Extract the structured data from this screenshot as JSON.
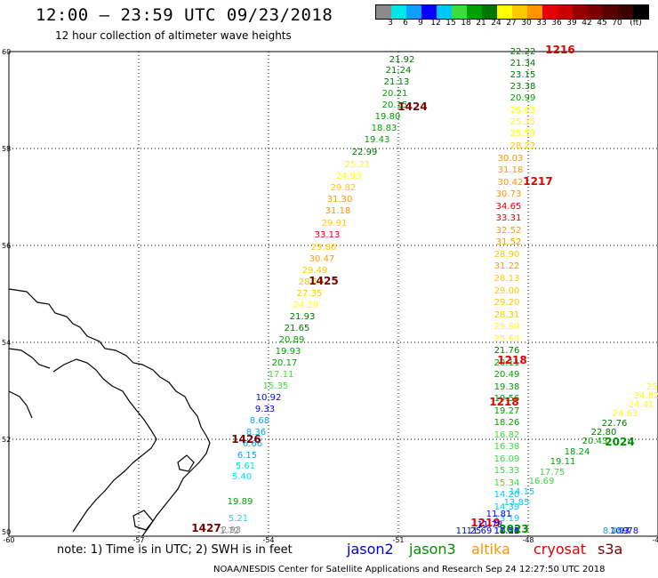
{
  "header": {
    "title": "12:00 – 23:59 UTC 09/23/2018",
    "subtitle": "12 hour collection of altimeter wave heights"
  },
  "legend": {
    "colors": [
      "#8c8c8c",
      "#00e6e6",
      "#0fa0ff",
      "#0000ff",
      "#00c8ff",
      "#3cdc3c",
      "#00a000",
      "#007800",
      "#ffff00",
      "#ffc800",
      "#ff9600",
      "#e60000",
      "#c80000",
      "#960000",
      "#7a0000",
      "#5a0000",
      "#3c0000",
      "#000000"
    ],
    "labels": [
      "3",
      "6",
      "9",
      "12",
      "15",
      "18",
      "21",
      "24",
      "27",
      "30",
      "33",
      "36",
      "39",
      "42",
      "45",
      "70",
      "(ft)"
    ]
  },
  "axes": {
    "lat_labels": [
      "60",
      "58",
      "56",
      "54",
      "52",
      "50"
    ],
    "lon_labels": [
      "-60",
      "-57",
      "-54",
      "-51",
      "-48",
      "-45"
    ]
  },
  "tracks": [
    {
      "id": "1216",
      "values": [
        "22.22",
        "21.34",
        "23.15",
        "23.38",
        "20.99",
        "25.03",
        "25.35",
        "25.59",
        "28.22",
        "30.03",
        "31.18",
        "30.42",
        "30.73",
        "34.65",
        "33.31",
        "32.52",
        "31.52",
        "28.90",
        "31.22",
        "28.13",
        "29.00",
        "29.20",
        "28.31",
        "25.89",
        "25.63",
        "21.76",
        "20.11",
        "20.49",
        "19.38",
        "19.56",
        "19.27",
        "18.26",
        "16.82",
        "16.38",
        "16.09",
        "15.33",
        "15.34",
        "14.20",
        "14.39",
        "13.19",
        "11.71",
        "11.50",
        "11.12",
        "11.11",
        "10.24"
      ],
      "labels": [
        {
          "text": "1216",
          "color": "#e00000"
        },
        {
          "text": "1217",
          "color": "#e00000"
        },
        {
          "text": "1218",
          "color": "#e00000"
        },
        {
          "text": "1218",
          "color": "#e00000"
        },
        {
          "text": "1219",
          "color": "#e00000"
        }
      ]
    },
    {
      "id": "1424",
      "values": [
        "21.92",
        "21.24",
        "21.13",
        "20.21",
        "20.15",
        "19.80",
        "18.83",
        "19.43",
        "22.99",
        "25.21",
        "24.93",
        "29.82",
        "31.30",
        "31.18",
        "29.91",
        "33.13",
        "29.80",
        "30.47",
        "29.49",
        "28.14",
        "27.35",
        "24.29",
        "21.93",
        "21.65",
        "20.89",
        "19.93",
        "20.17",
        "17.11",
        "15.35",
        "10.92",
        "9.33",
        "8.68",
        "8.36",
        "6.66",
        "6.15",
        "5.61",
        "5.40",
        "19.89",
        "5.21",
        "2.93",
        "1.72"
      ],
      "labels": [
        {
          "text": "1424",
          "color": "#7a0000"
        },
        {
          "text": "1425",
          "color": "#7a0000"
        },
        {
          "text": "1426",
          "color": "#7a0000"
        },
        {
          "text": "1427",
          "color": "#7a0000"
        }
      ]
    },
    {
      "id": "2023",
      "values": [
        "25.",
        "24.82",
        "24.41",
        "24.63",
        "22.76",
        "22.80",
        "20.43",
        "18.24",
        "19.11",
        "17.75",
        "16.69",
        "14.15",
        "13.85",
        "11.81",
        "11.78",
        "11.69",
        "11.25",
        "9.78",
        "10.3",
        "9.",
        "8.48"
      ],
      "labels": [
        {
          "text": "2024",
          "color": "#009000"
        },
        {
          "text": "2023",
          "color": "#009000"
        }
      ]
    }
  ],
  "note": {
    "text": "note:  1) Time is in UTC;  2) SWH is in feet"
  },
  "satellites": [
    {
      "name": "jason2",
      "color": "#0000dd"
    },
    {
      "name": "jason3",
      "color": "#009000"
    },
    {
      "name": "altika",
      "color": "#ff9600"
    },
    {
      "name": "cryosat",
      "color": "#e00000"
    },
    {
      "name": "s3a",
      "color": "#7a0000"
    }
  ],
  "footer": {
    "text": "NOAA/NESDIS Center for Satellite Applications and Research      Sep 24 12:27:50 UTC 2018"
  }
}
